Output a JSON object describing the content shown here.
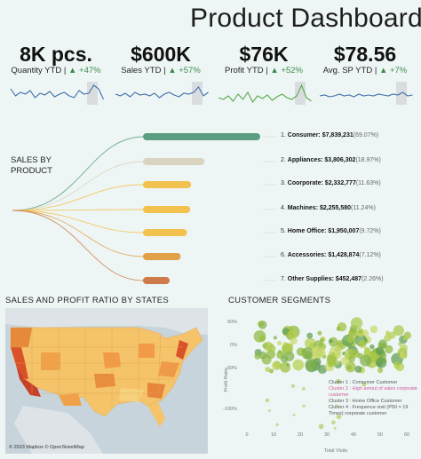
{
  "header": {
    "title": "Product Dashboard"
  },
  "kpis": [
    {
      "value": "8K pcs.",
      "label": "Quantity YTD |",
      "delta": "▲ +47%",
      "color": "#3f6fa8"
    },
    {
      "value": "$600K",
      "label": "Sales YTD |",
      "delta": "▲ +57%",
      "color": "#3f6fa8"
    },
    {
      "value": "$76K",
      "label": "Profit YTD |",
      "delta": "▲ +52%",
      "color": "#5aa84a"
    },
    {
      "value": "$78.56",
      "label": "Avg. SP YTD |",
      "delta": "▲ +7%",
      "color": "#3f6fa8"
    }
  ],
  "sales_by_product": {
    "title_line1": "SALES BY",
    "title_line2": "PRODUCT",
    "items": [
      {
        "rank": "1.",
        "name": "Consumer:",
        "value": "$7,839,231",
        "pct": "(69.07%)",
        "color": "#5a9e7f",
        "share": 0.6907
      },
      {
        "rank": "2.",
        "name": "Appliances:",
        "value": "$3,806,302",
        "pct": "(18.97%)",
        "color": "#d8d4c0",
        "share": 0.1897
      },
      {
        "rank": "3.",
        "name": "Coorporate:",
        "value": "$2,332,777",
        "pct": "(11.63%)",
        "color": "#f2c14e",
        "share": 0.1163
      },
      {
        "rank": "4.",
        "name": "Machines:",
        "value": "$2,255,580",
        "pct": "(11.24%)",
        "color": "#f2c14e",
        "share": 0.1124
      },
      {
        "rank": "5.",
        "name": "Home Office:",
        "value": "$1,950,007",
        "pct": "(9.72%)",
        "color": "#f2c14e",
        "share": 0.0972
      },
      {
        "rank": "6.",
        "name": "Accessories:",
        "value": "$1,428,874",
        "pct": "(7.12%)",
        "color": "#e2a049",
        "share": 0.0712
      },
      {
        "rank": "7.",
        "name": "Other Supplies:",
        "value": "$452,487",
        "pct": "(2.26%)",
        "color": "#cf7a4a",
        "share": 0.0226
      }
    ]
  },
  "map_section": {
    "title": "SALES AND PROFIT RATIO BY STATES",
    "attribution": "© 2023 Mapbox © OpenStreetMap"
  },
  "customer_segments": {
    "title": "CUSTOMER SEGMENTS",
    "xlabel": "Total Visits",
    "ylabel": "Profit Ratio",
    "x_ticks": [
      "0",
      "10",
      "20",
      "30",
      "40",
      "50",
      "60"
    ],
    "y_ticks": [
      "50%",
      "0%",
      "-50%",
      "-100%"
    ],
    "legend": [
      {
        "text": "Cluster 1 : Consumer Customer",
        "color": "#555"
      },
      {
        "text": "Cluster 2 : High amout of sales corporate customer",
        "color": "#d15a9a"
      },
      {
        "text": "Cluster 3 : Home Office Customer",
        "color": "#555"
      },
      {
        "text": "Cluster 4 : Frequence visit (P50 = 19 Times) corporate customer",
        "color": "#555"
      }
    ]
  }
}
